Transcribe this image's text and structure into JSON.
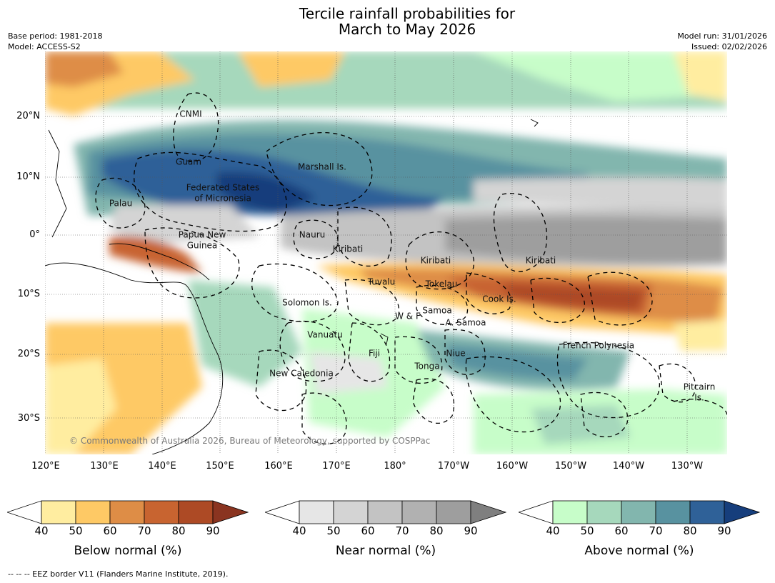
{
  "title_line1": "Tercile rainfall probabilities for",
  "title_line2": "March to May 2026",
  "meta_left": [
    "Base period: 1981-2018",
    "Model: ACCESS-S2"
  ],
  "meta_right": [
    "Model run: 31/01/2026",
    "Issued: 02/02/2026"
  ],
  "lat_labels": [
    "20°N",
    "10°N",
    "0°",
    "10°S",
    "20°S",
    "30°S"
  ],
  "lon_labels": [
    "120°E",
    "130°E",
    "140°E",
    "150°E",
    "160°E",
    "170°E",
    "180°",
    "170°W",
    "160°W",
    "150°W",
    "140°W",
    "130°W"
  ],
  "places": {
    "cnmi": "CNMI",
    "guam": "Guam",
    "marshall": "Marshall Is.",
    "fsm1": "Federated States",
    "fsm2": "of Micronesia",
    "palau": "Palau",
    "png1": "Papua New",
    "png2": "Guinea",
    "nauru": "Nauru",
    "kiribati_w": "Kiribati",
    "kiribati_c": "Kiribati",
    "kiribati_e": "Kiribati",
    "tuvalu": "Tuvalu",
    "tokelau": "Tokelau",
    "cook": "Cook Is.",
    "solomon": "Solomon Is.",
    "wf": "W & F",
    "samoa": "Samoa",
    "asamoa": "A. Samoa",
    "vanuatu": "Vanuatu",
    "fiji": "Fiji",
    "niue": "Niue",
    "french_polynesia": "French Polynesia",
    "tonga": "Tonga",
    "new_caledonia": "New Caledonia",
    "pitcairn1": "Pitcairn",
    "pitcairn2": "Is."
  },
  "copyright": "© Commonwealth of Australia 2026, Bureau of Meteorology, supported by COSPPac",
  "colorbars": [
    {
      "label": "Below normal (%)",
      "ticks": [
        "40",
        "50",
        "60",
        "70",
        "80",
        "90"
      ],
      "colors": [
        "#ffffff",
        "#ffeda0",
        "#fec965",
        "#de8d46",
        "#c86430",
        "#ad4a25",
        "#8a3420"
      ]
    },
    {
      "label": "Near normal (%)",
      "ticks": [
        "40",
        "50",
        "60",
        "70",
        "80",
        "90"
      ],
      "colors": [
        "#ffffff",
        "#e6e6e6",
        "#d4d4d4",
        "#c3c3c3",
        "#b1b1b1",
        "#9e9e9e",
        "#7f7f7f"
      ]
    },
    {
      "label": "Above normal (%)",
      "ticks": [
        "40",
        "50",
        "60",
        "70",
        "80",
        "90"
      ],
      "colors": [
        "#ffffff",
        "#c7fdc9",
        "#a6d8bc",
        "#82b6ae",
        "#5892a0",
        "#2f6198",
        "#163e7c"
      ]
    }
  ],
  "footnote": "-- -- -- EEZ border V11 (Flanders Marine Institute, 2019)."
}
